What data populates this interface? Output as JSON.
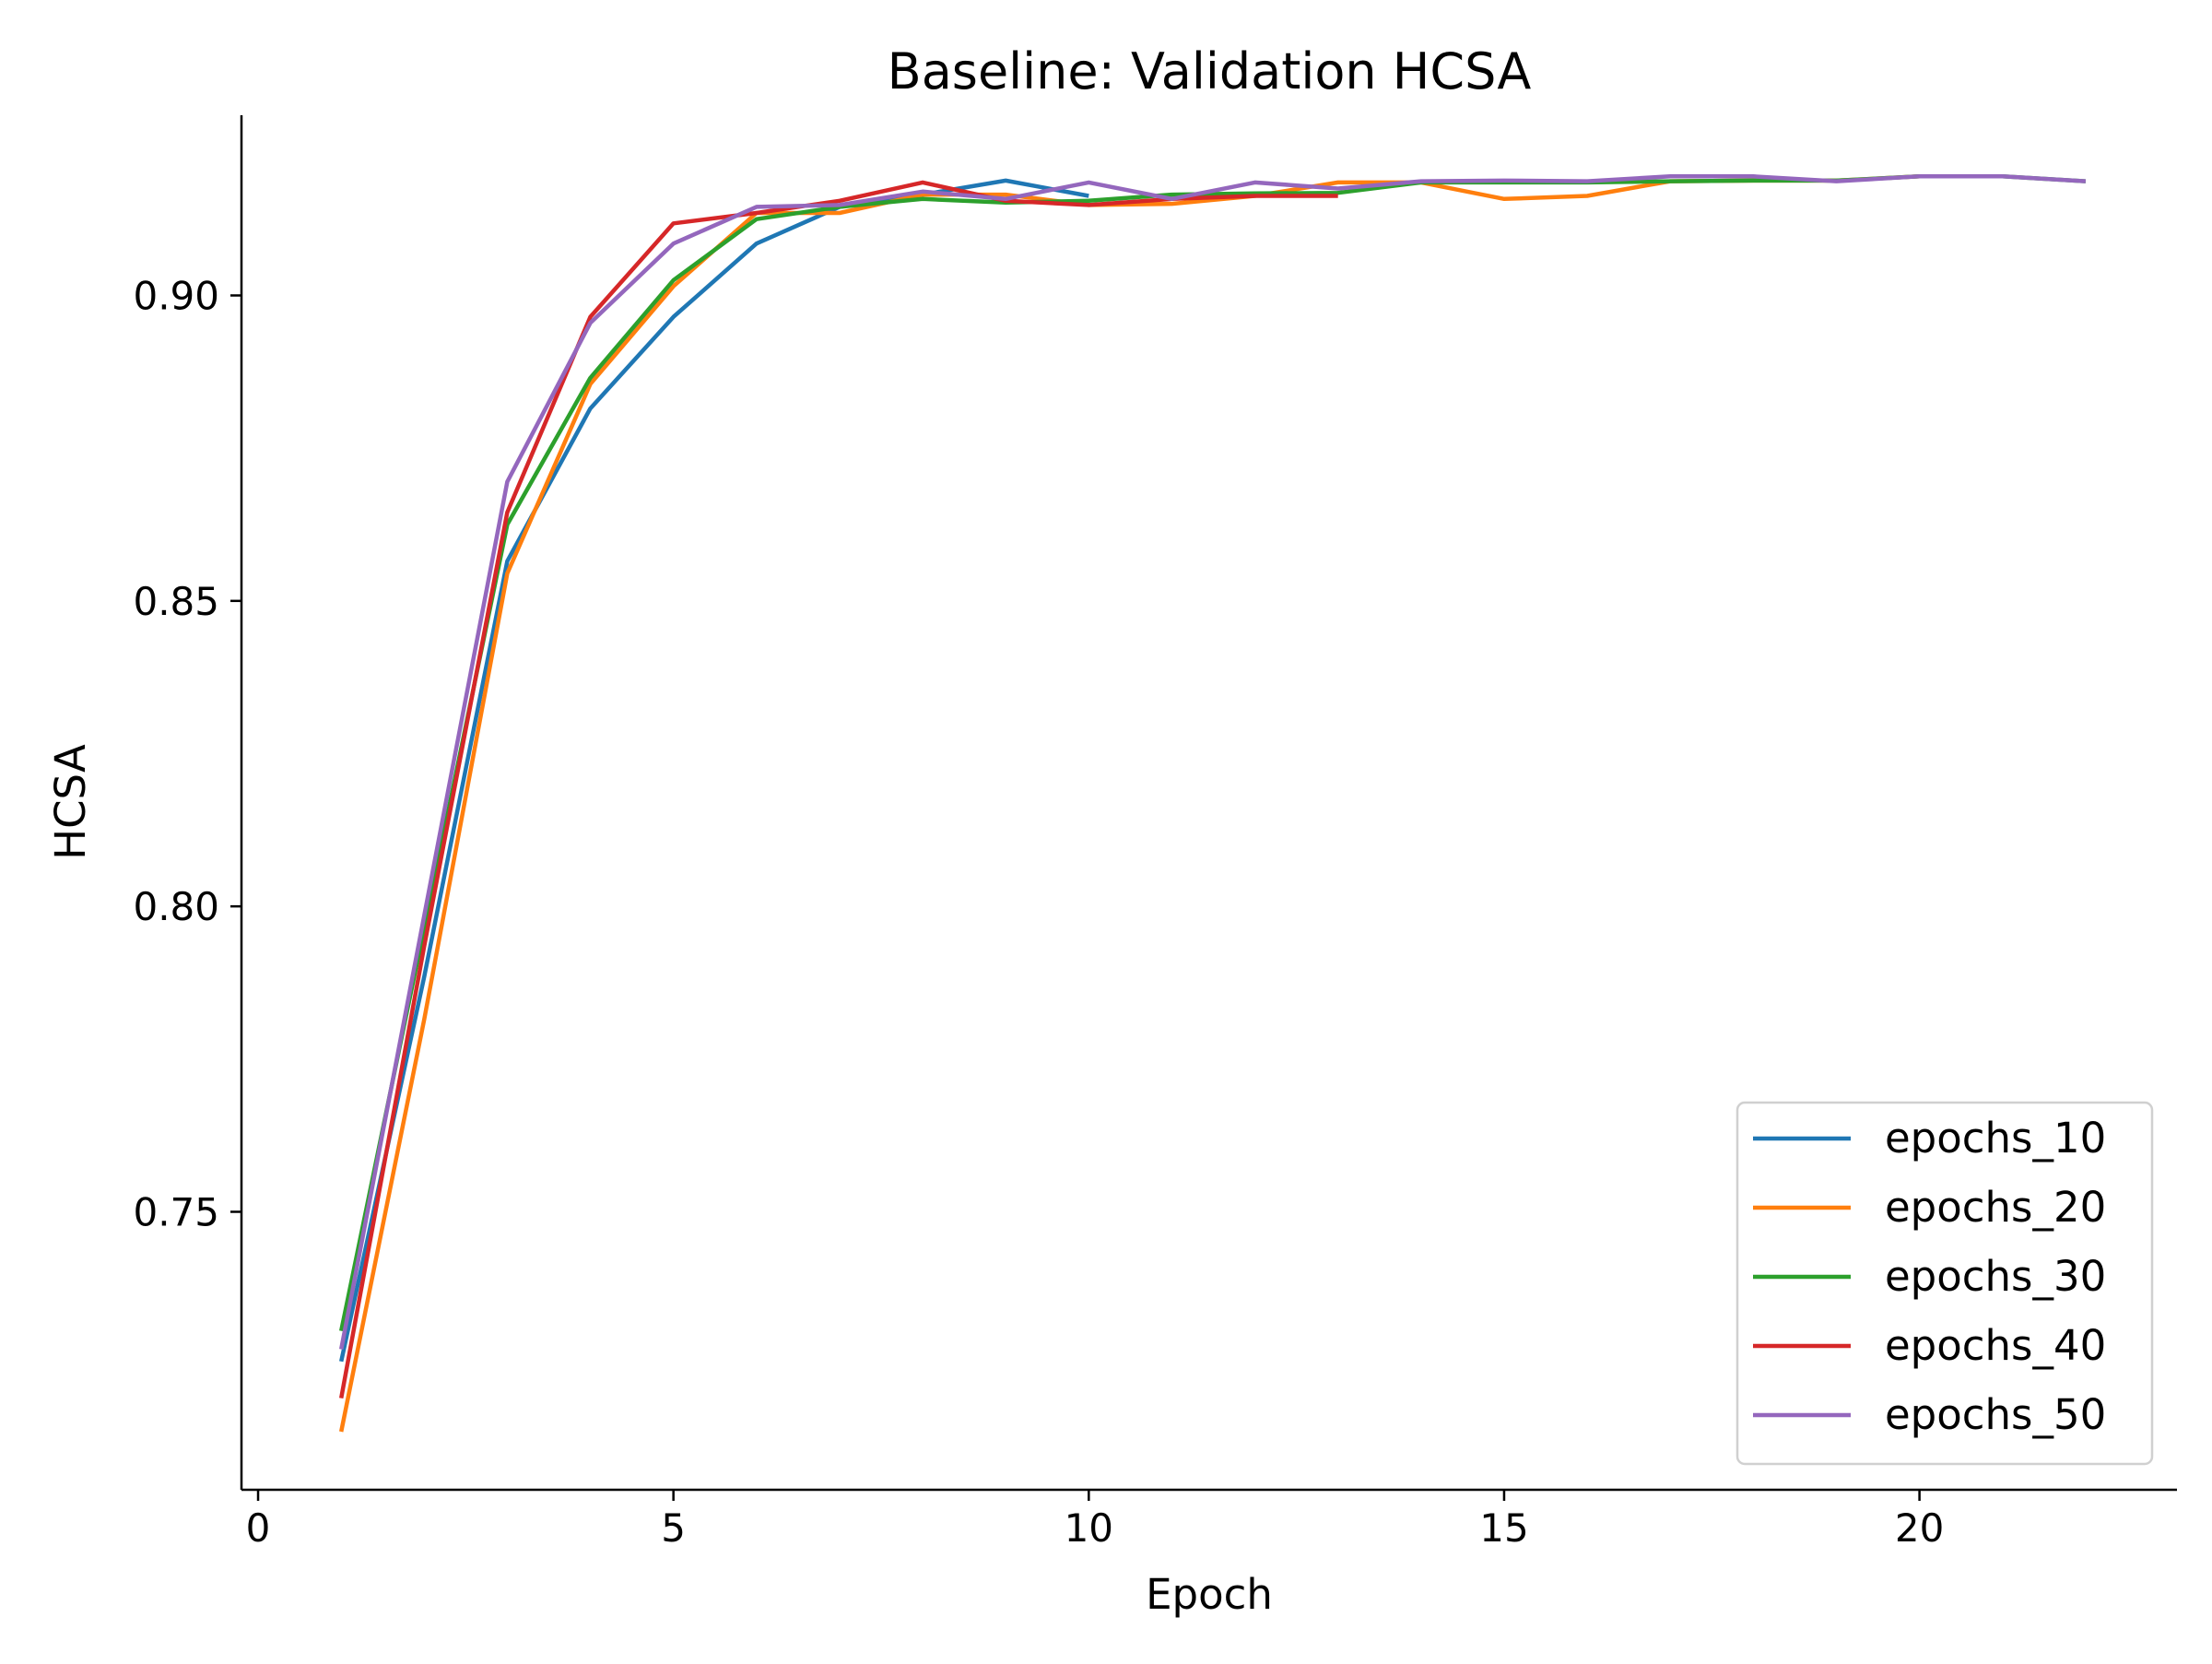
{
  "chart_data": {
    "type": "line",
    "title": "Baseline: Validation HCSA",
    "xlabel": "Epoch",
    "ylabel": "HCSA",
    "xlim": [
      -0.2,
      23.1
    ],
    "ylim": [
      0.7045,
      0.9295
    ],
    "xticks": [
      0,
      5,
      10,
      15,
      20
    ],
    "xtick_labels": [
      "0",
      "5",
      "10",
      "15",
      "20"
    ],
    "yticks": [
      0.75,
      0.8,
      0.85,
      0.9
    ],
    "ytick_labels": [
      "0.75",
      "0.80",
      "0.85",
      "0.90"
    ],
    "grid": false,
    "legend_position": "lower-right",
    "series": [
      {
        "name": "epochs_10",
        "color": "#1f77b4",
        "x": [
          1,
          2,
          3,
          4,
          5,
          6,
          7,
          8,
          9,
          10
        ],
        "values": [
          0.7255,
          0.7885,
          0.8565,
          0.8815,
          0.8965,
          0.9085,
          0.9145,
          0.9165,
          0.9188,
          0.9163
        ]
      },
      {
        "name": "epochs_20",
        "color": "#ff7f0e",
        "x": [
          1,
          2,
          3,
          4,
          5,
          6,
          7,
          8,
          9,
          10,
          11,
          12,
          13,
          14,
          15,
          16,
          17,
          18,
          19,
          20
        ],
        "values": [
          0.714,
          0.7815,
          0.8545,
          0.8855,
          0.9015,
          0.9135,
          0.9135,
          0.9165,
          0.9165,
          0.9148,
          0.915,
          0.9163,
          0.9185,
          0.9185,
          0.9158,
          0.9163,
          0.9187,
          0.9188,
          0.9188,
          0.9195
        ]
      },
      {
        "name": "epochs_30",
        "color": "#2ca02c",
        "x": [
          1,
          2,
          3,
          4,
          5,
          6,
          7,
          8,
          9,
          10,
          11,
          12,
          13,
          14,
          15,
          16,
          17,
          18,
          19,
          20,
          21,
          22
        ],
        "values": [
          0.7305,
          0.7965,
          0.8625,
          0.8865,
          0.9025,
          0.9125,
          0.9145,
          0.9158,
          0.9152,
          0.9155,
          0.9165,
          0.9167,
          0.9168,
          0.9185,
          0.9185,
          0.9185,
          0.9187,
          0.9188,
          0.9188,
          0.9195,
          0.9195,
          0.9187
        ]
      },
      {
        "name": "epochs_40",
        "color": "#d62728",
        "x": [
          1,
          2,
          3,
          4,
          5,
          6,
          7,
          8,
          9,
          10,
          11,
          12,
          13
        ],
        "values": [
          0.7195,
          0.7935,
          0.8645,
          0.8965,
          0.9118,
          0.9135,
          0.9155,
          0.9185,
          0.9155,
          0.9148,
          0.9158,
          0.9163,
          0.9163
        ]
      },
      {
        "name": "epochs_50",
        "color": "#9467bd",
        "x": [
          1,
          2,
          3,
          4,
          5,
          6,
          7,
          8,
          9,
          10,
          11,
          12,
          13,
          14,
          15,
          16,
          17,
          18,
          19,
          20,
          21,
          22
        ],
        "values": [
          0.7275,
          0.7985,
          0.8695,
          0.8955,
          0.9085,
          0.9145,
          0.9148,
          0.917,
          0.9158,
          0.9185,
          0.9158,
          0.9185,
          0.9175,
          0.9187,
          0.9188,
          0.9187,
          0.9195,
          0.9195,
          0.9187,
          0.9195,
          0.9195,
          0.9187
        ]
      }
    ]
  }
}
